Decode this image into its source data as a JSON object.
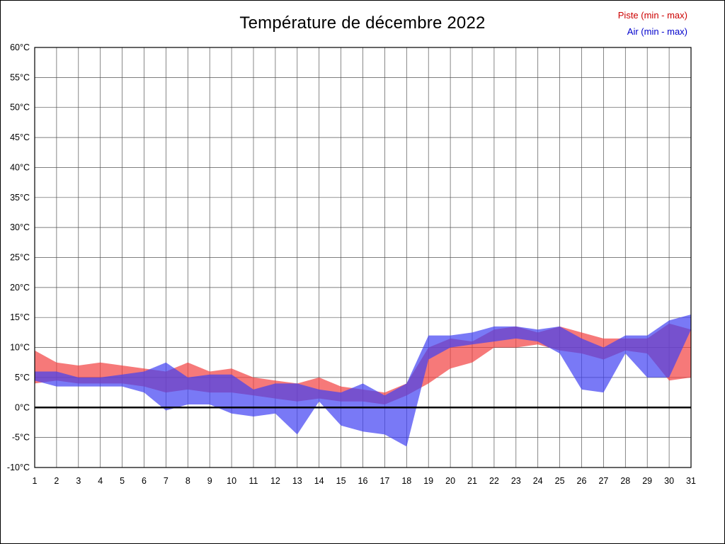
{
  "title": "Température de décembre 2022",
  "legend": {
    "piste": {
      "label": "Piste (min - max)",
      "color": "#cc0000"
    },
    "air": {
      "label": "Air (min - max)",
      "color": "#0000cc"
    }
  },
  "chart_data": {
    "type": "area",
    "title": "Température de décembre 2022",
    "xlabel": "",
    "ylabel": "",
    "x": [
      1,
      2,
      3,
      4,
      5,
      6,
      7,
      8,
      9,
      10,
      11,
      12,
      13,
      14,
      15,
      16,
      17,
      18,
      19,
      20,
      21,
      22,
      23,
      24,
      25,
      26,
      27,
      28,
      29,
      30,
      31
    ],
    "ylim": [
      -10,
      60
    ],
    "ytick_step": 5,
    "grid": true,
    "grid_color": "#555555",
    "zero_line": 0,
    "series": [
      {
        "id": "piste",
        "name": "Piste (min - max)",
        "color": "#f24040",
        "min": [
          4,
          4.5,
          4,
          4,
          4,
          3.5,
          2.5,
          3,
          2.5,
          2.5,
          2,
          1.5,
          1,
          1.5,
          1,
          1,
          0.5,
          2,
          4,
          6.5,
          7.5,
          10,
          10,
          10.5,
          9.5,
          9,
          8,
          9.5,
          9,
          4.5,
          5
        ],
        "max": [
          9.5,
          7.5,
          7,
          7.5,
          7,
          6.5,
          6,
          7.5,
          6,
          6.5,
          5,
          4.5,
          4,
          5,
          3.5,
          3,
          2.5,
          4,
          10,
          11.5,
          11,
          13,
          13.5,
          12.5,
          13.5,
          12.5,
          11.5,
          11.5,
          11.5,
          14,
          13
        ]
      },
      {
        "id": "air",
        "name": "Air (min - max)",
        "color": "#4040f2",
        "min": [
          4.5,
          3.5,
          3.5,
          3.5,
          3.5,
          2.5,
          -0.5,
          0.5,
          0.5,
          -1,
          -1.5,
          -1,
          -4.5,
          1,
          -3,
          -4,
          -4.5,
          -6.5,
          8,
          10,
          10.5,
          11,
          11.5,
          11,
          9,
          3,
          2.5,
          9,
          5,
          5,
          13
        ],
        "max": [
          6,
          6,
          5,
          5,
          5.5,
          6,
          7.5,
          5,
          5.5,
          5.5,
          3,
          4,
          4,
          3,
          2.5,
          4,
          2,
          4,
          12,
          12,
          12.5,
          13.5,
          13.5,
          13,
          13.5,
          11.5,
          10,
          12,
          12,
          14.5,
          15.5
        ]
      }
    ],
    "yticks": [
      {
        "value": 60,
        "label": "60°C"
      },
      {
        "value": 55,
        "label": "55°C"
      },
      {
        "value": 50,
        "label": "50°C"
      },
      {
        "value": 45,
        "label": "45°C"
      },
      {
        "value": 40,
        "label": "40°C"
      },
      {
        "value": 35,
        "label": "35°C"
      },
      {
        "value": 30,
        "label": "30°C"
      },
      {
        "value": 25,
        "label": "25°C"
      },
      {
        "value": 20,
        "label": "20°C"
      },
      {
        "value": 15,
        "label": "15°C"
      },
      {
        "value": 10,
        "label": "10°C"
      },
      {
        "value": 5,
        "label": "5°C"
      },
      {
        "value": 0,
        "label": "0°C"
      },
      {
        "value": -5,
        "label": "-5°C"
      },
      {
        "value": -10,
        "label": "-10°C"
      }
    ]
  }
}
